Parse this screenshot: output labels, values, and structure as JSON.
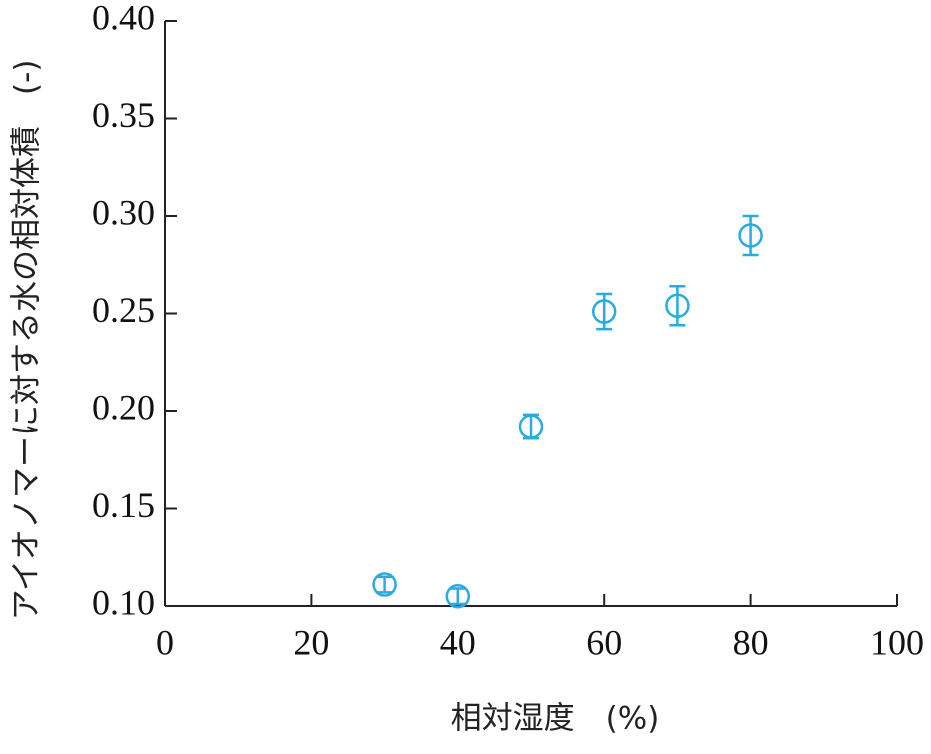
{
  "chart_data": {
    "type": "scatter",
    "xlabel": "相対湿度　(%)",
    "ylabel": "アイオノマーに対する水の相対体積　(-)",
    "x": [
      30,
      40,
      50,
      60,
      70,
      80
    ],
    "series": [
      {
        "color": "#29abe2",
        "values": [
          0.111,
          0.105,
          0.192,
          0.251,
          0.254,
          0.29
        ],
        "errors": [
          0.004,
          0.004,
          0.006,
          0.009,
          0.01,
          0.01
        ]
      }
    ],
    "xlim": [
      0,
      100
    ],
    "xticks": [
      0,
      20,
      40,
      60,
      80,
      100
    ],
    "ylim": [
      0.1,
      0.4
    ],
    "yticks": [
      {
        "value": 0.1,
        "label": "0.10"
      },
      {
        "value": 0.15,
        "label": "0.15"
      },
      {
        "value": 0.2,
        "label": "0.20"
      },
      {
        "value": 0.25,
        "label": "0.25"
      },
      {
        "value": 0.3,
        "label": "0.30"
      },
      {
        "value": 0.35,
        "label": "0.35"
      },
      {
        "value": 0.4,
        "label": "0.40"
      }
    ],
    "grid": false
  }
}
